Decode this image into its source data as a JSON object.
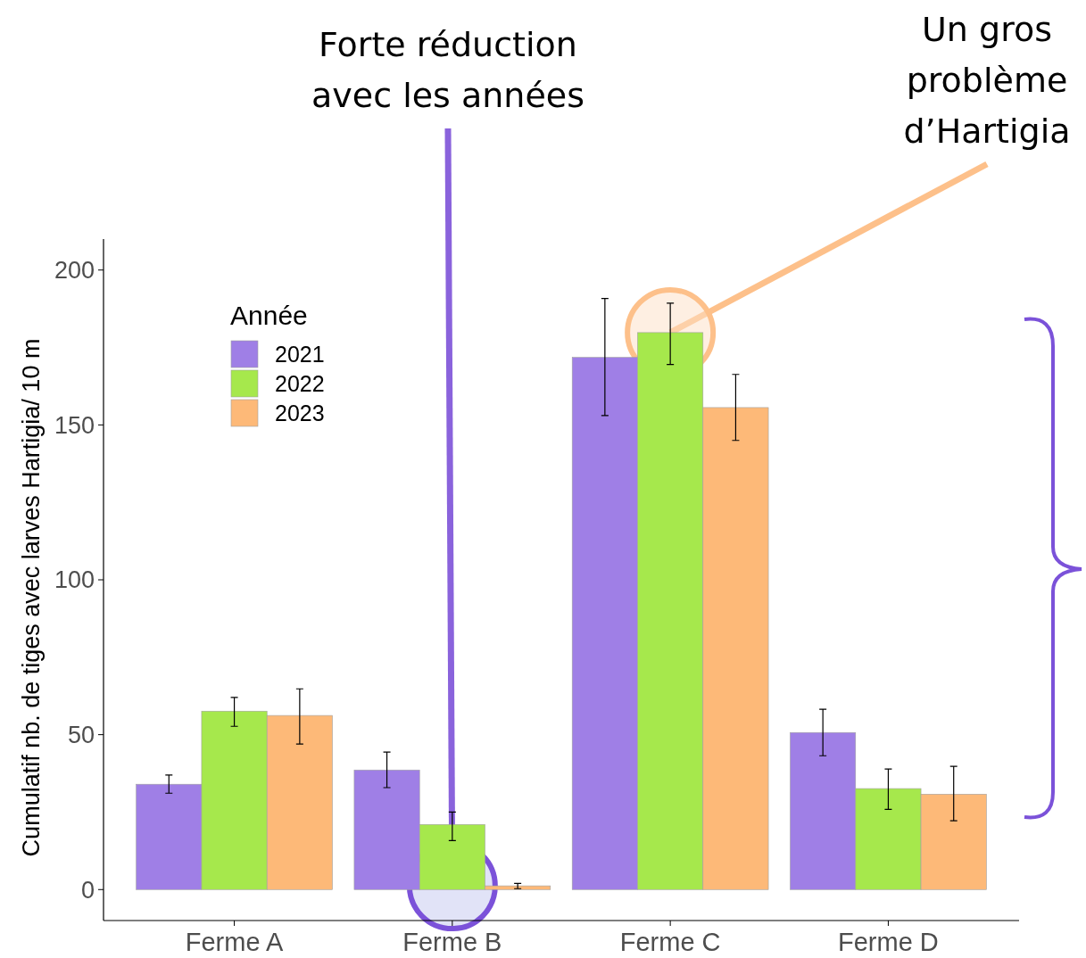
{
  "chart_data": {
    "type": "bar",
    "ylabel": "Cumulatif nb. de tiges avec larves Hartigia/ 10 m",
    "legend_title": "Année",
    "categories": [
      "Ferme A",
      "Ferme B",
      "Ferme C",
      "Ferme D"
    ],
    "series": [
      {
        "name": "2021",
        "color": "#9f7fe6",
        "values": [
          34,
          38.6,
          171.8,
          50.7
        ],
        "errors": [
          [
            31.1,
            37
          ],
          [
            32.9,
            44.4
          ],
          [
            153,
            190.8
          ],
          [
            43.2,
            58.2
          ]
        ]
      },
      {
        "name": "2022",
        "color": "#a6e84c",
        "values": [
          57.6,
          21,
          179.8,
          32.6
        ],
        "errors": [
          [
            52.7,
            62
          ],
          [
            15.8,
            25
          ],
          [
            169.5,
            189.3
          ],
          [
            25.9,
            38.9
          ]
        ]
      },
      {
        "name": "2023",
        "color": "#fdb978",
        "values": [
          56.2,
          1.2,
          155.6,
          30.8
        ],
        "errors": [
          [
            47,
            64.8
          ],
          [
            0.3,
            2
          ],
          [
            145,
            166.3
          ],
          [
            22.2,
            39.8
          ]
        ]
      }
    ],
    "ylim": [
      -10,
      210
    ],
    "yticks": [
      0,
      50,
      100,
      150,
      200
    ],
    "grid": false,
    "legend": "top left",
    "annotations": [
      {
        "text": "Forte réduction avec les années",
        "x": "Ferme B",
        "y": 1.2
      },
      {
        "text": "Un gros problème d’Hartigia",
        "x": "Ferme C",
        "y": 179.8
      }
    ]
  }
}
